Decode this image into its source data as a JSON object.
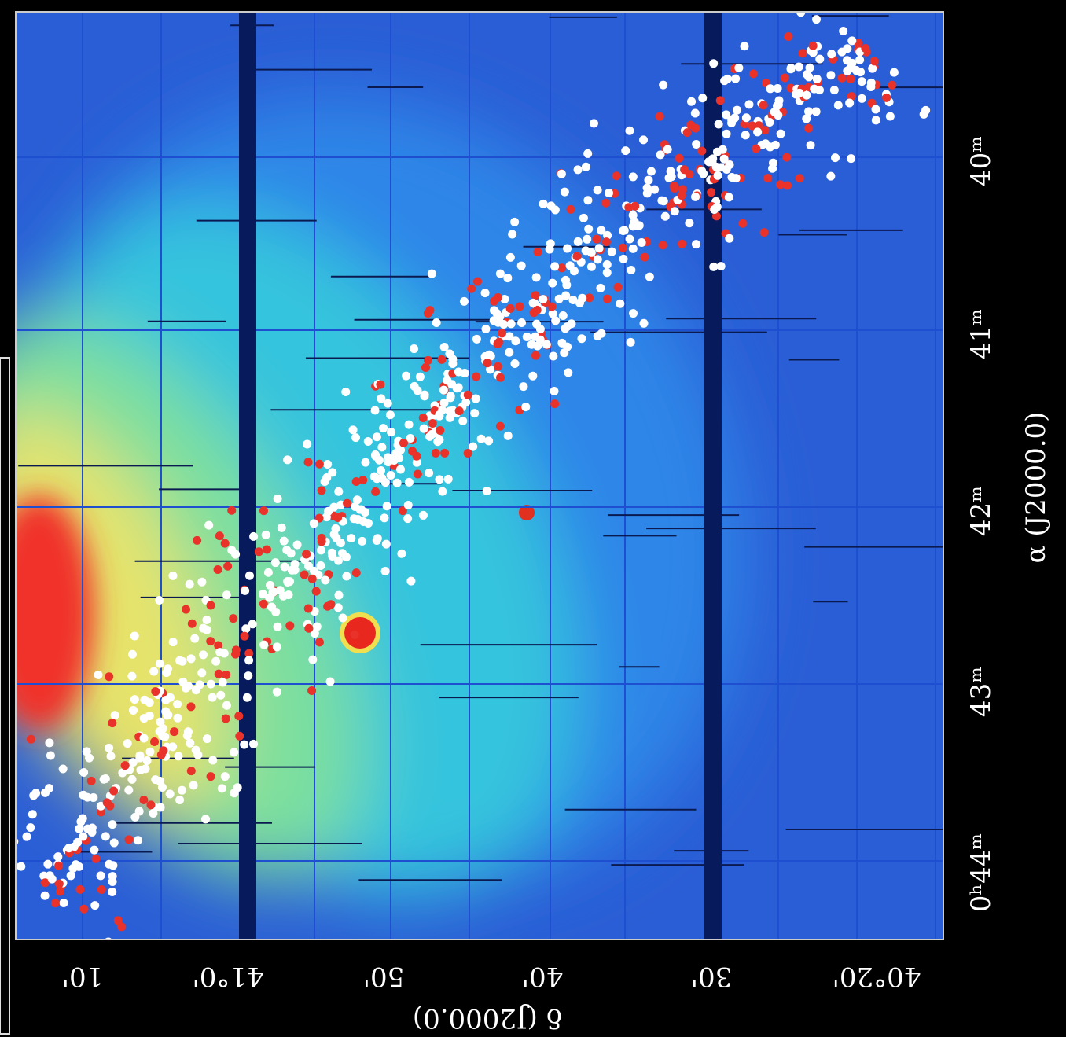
{
  "figure": {
    "x_axis": {
      "title": "δ (J2000.0)",
      "tick_labels": [
        "10'",
        "41°0'",
        "50'",
        "40'",
        "30'",
        "40°20'"
      ]
    },
    "y_axis": {
      "title": "α (J2000.0)",
      "tick_labels": [
        "40ᵐ",
        "41ᵐ",
        "42ᵐ",
        "43ᵐ",
        "0ʰ44ᵐ"
      ]
    }
  }
}
